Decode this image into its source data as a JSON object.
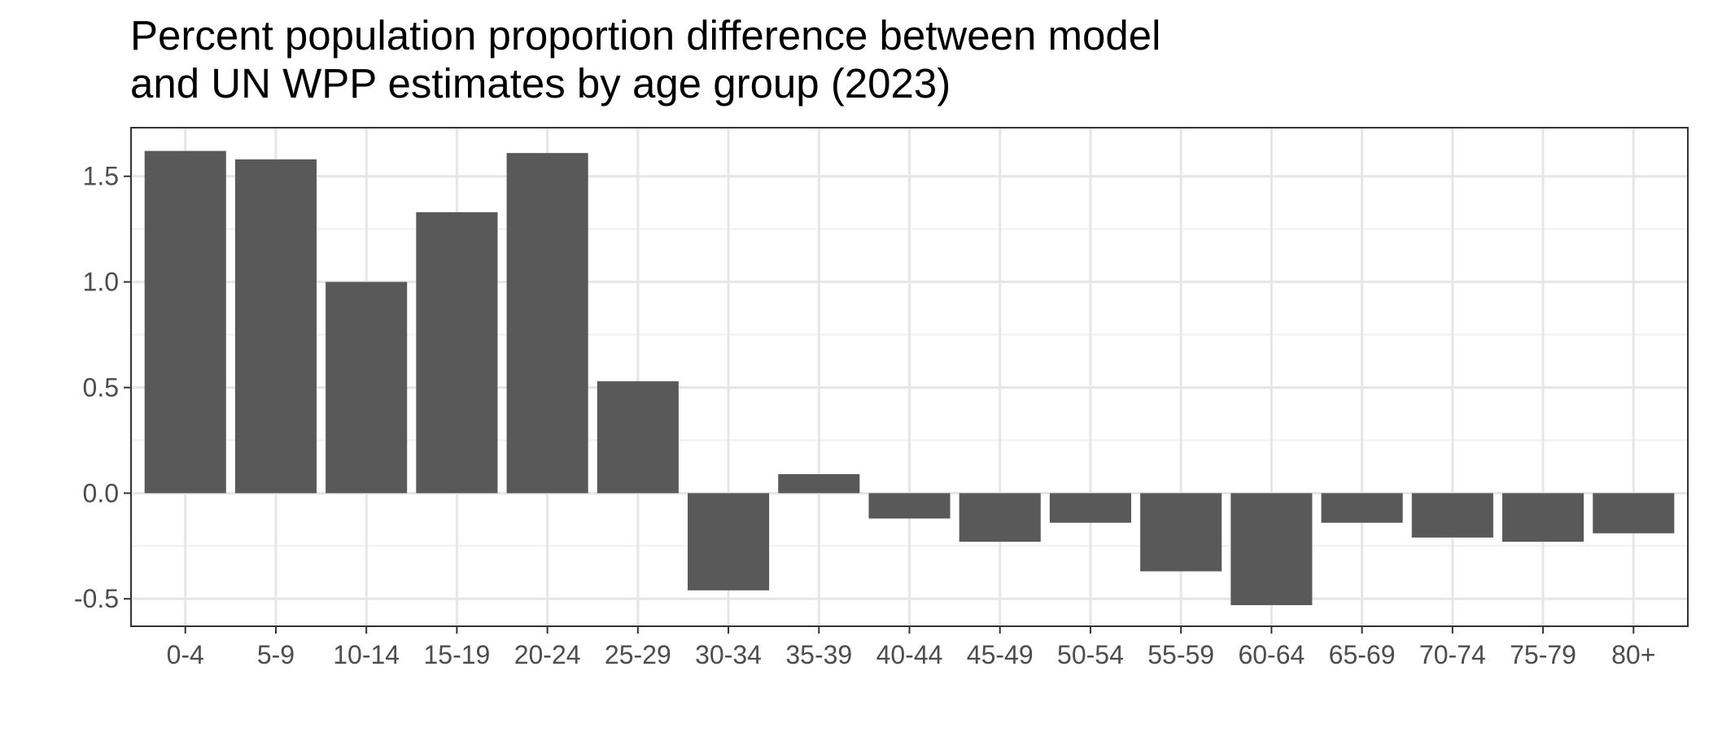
{
  "chart_data": {
    "type": "bar",
    "title_lines": [
      "Percent population proportion difference between model",
      "and UN WPP estimates by age group (2023)"
    ],
    "xlabel": "",
    "ylabel": "",
    "categories": [
      "0-4",
      "5-9",
      "10-14",
      "15-19",
      "20-24",
      "25-29",
      "30-34",
      "35-39",
      "40-44",
      "45-49",
      "50-54",
      "55-59",
      "60-64",
      "65-69",
      "70-74",
      "75-79",
      "80+"
    ],
    "values": [
      1.62,
      1.58,
      1.0,
      1.33,
      1.61,
      0.53,
      -0.46,
      0.09,
      -0.12,
      -0.23,
      -0.14,
      -0.37,
      -0.53,
      -0.14,
      -0.21,
      -0.23,
      -0.19
    ],
    "ylim": [
      -0.63,
      1.73
    ],
    "yticks": [
      -0.5,
      0.0,
      0.5,
      1.0,
      1.5
    ],
    "ytick_labels": [
      "-0.5",
      "0.0",
      "0.5",
      "1.0",
      "1.5"
    ],
    "grid": true,
    "bar_color": "#595959",
    "legend": "none"
  }
}
